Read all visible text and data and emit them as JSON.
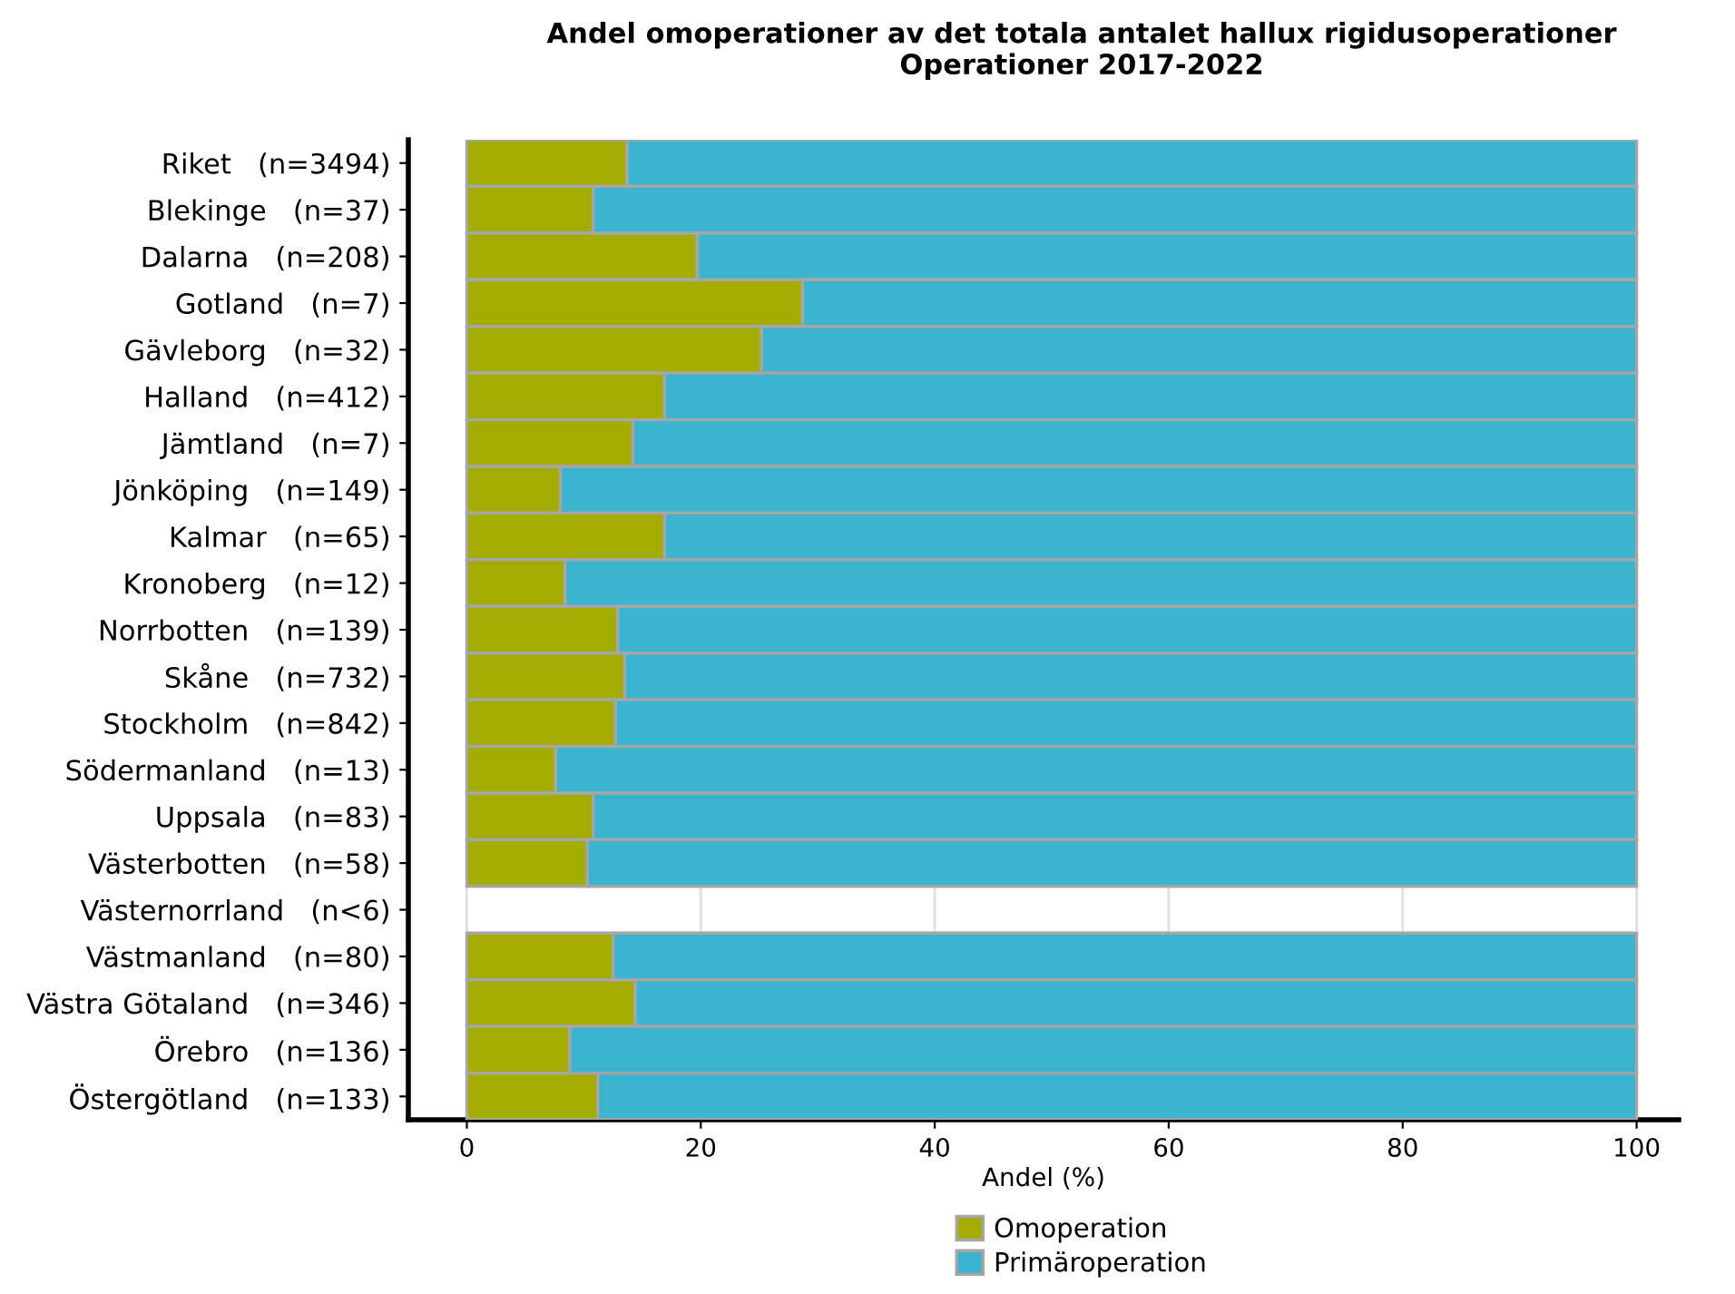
{
  "chart_data": {
    "type": "bar",
    "orientation": "horizontal",
    "stacked": true,
    "title": "Andel omoperationer av det totala antalet hallux rigidusoperationer\nOperationer 2017-2022",
    "xlabel": "Andel (%)",
    "categories": [
      "Riket   (n=3494)",
      "Blekinge   (n=37)",
      "Dalarna   (n=208)",
      "Gotland   (n=7)",
      "Gävleborg   (n=32)",
      "Halland   (n=412)",
      "Jämtland   (n=7)",
      "Jönköping   (n=149)",
      "Kalmar   (n=65)",
      "Kronoberg   (n=12)",
      "Norrbotten   (n=139)",
      "Skåne   (n=732)",
      "Stockholm   (n=842)",
      "Södermanland   (n=13)",
      "Uppsala   (n=83)",
      "Västerbotten   (n=58)",
      "Västernorrland   (n<6)",
      "Västmanland   (n=80)",
      "Västra Götaland   (n=346)",
      "Örebro   (n=136)",
      "Östergötland   (n=133)"
    ],
    "series": [
      {
        "name": "Omoperation",
        "color": "#a4ac00",
        "values": [
          13.7,
          10.8,
          19.7,
          28.7,
          25.2,
          16.9,
          14.2,
          8.0,
          16.9,
          8.4,
          12.9,
          13.5,
          12.7,
          7.6,
          10.8,
          10.3,
          null,
          12.5,
          14.4,
          8.8,
          11.2
        ]
      },
      {
        "name": "Primäroperation",
        "color": "#3bb5cf",
        "values": [
          86.3,
          89.2,
          80.3,
          71.3,
          74.8,
          83.1,
          85.8,
          92.0,
          83.1,
          91.6,
          87.1,
          86.5,
          87.3,
          92.4,
          89.2,
          89.7,
          null,
          87.5,
          85.6,
          91.2,
          88.8
        ]
      }
    ],
    "xlim": [
      -5,
      103.6
    ],
    "xticks": [
      0,
      20,
      40,
      60,
      80,
      100
    ],
    "grid": "x",
    "legend": "bottom"
  }
}
